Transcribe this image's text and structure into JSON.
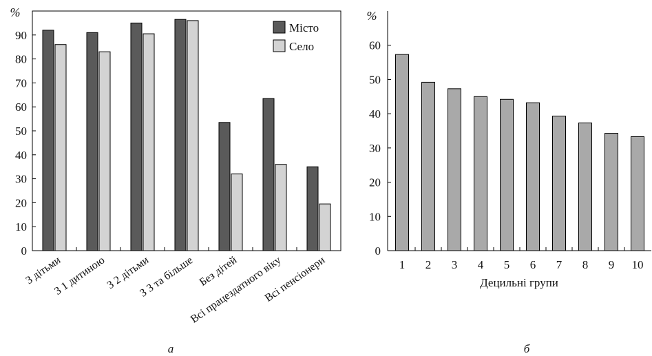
{
  "chart_data": [
    {
      "type": "bar",
      "panel_label": "а",
      "y_unit": "%",
      "ylim": [
        0,
        100
      ],
      "yticks": [
        0,
        10,
        20,
        30,
        40,
        50,
        60,
        70,
        80,
        90
      ],
      "categories": [
        "З дітьми",
        "З 1 дитиною",
        "З 2 дітьми",
        "З 3 та більше",
        "Без дітей",
        "Всі працездатного віку",
        "Всі пенсіонери"
      ],
      "series": [
        {
          "name": "Місто",
          "color": "#5a5a5a",
          "values": [
            92,
            91,
            95,
            96.5,
            53.5,
            63.5,
            35
          ]
        },
        {
          "name": "Село",
          "color": "#d3d3d3",
          "values": [
            86,
            83,
            90.5,
            96,
            32,
            36,
            19.5
          ]
        }
      ],
      "legend_position": "top-right",
      "grid": false
    },
    {
      "type": "bar",
      "panel_label": "б",
      "y_unit": "%",
      "ylim": [
        0,
        70
      ],
      "yticks": [
        0,
        10,
        20,
        30,
        40,
        50,
        60
      ],
      "xlabel": "Децильні групи",
      "categories": [
        "1",
        "2",
        "3",
        "4",
        "5",
        "6",
        "7",
        "8",
        "9",
        "10"
      ],
      "series": [
        {
          "color": "#a9a9a9",
          "values": [
            57.3,
            49.2,
            47.3,
            45,
            44.2,
            43.2,
            39.3,
            37.3,
            34.3,
            33.3
          ]
        }
      ],
      "grid": false
    }
  ]
}
